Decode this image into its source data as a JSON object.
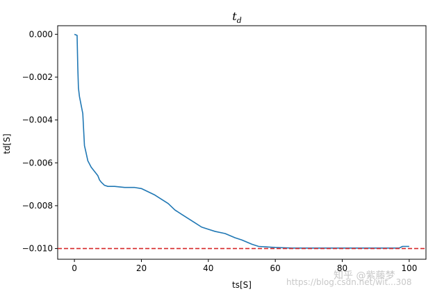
{
  "chart_data": {
    "type": "line",
    "title": "t",
    "title_subscript": "d",
    "xlabel": "ts[S]",
    "ylabel": "td[S]",
    "xlim": [
      -5,
      105
    ],
    "ylim": [
      -0.0105,
      0.0004
    ],
    "xticks": [
      0,
      20,
      40,
      60,
      80,
      100
    ],
    "yticks": [
      0.0,
      -0.002,
      -0.004,
      -0.006,
      -0.008,
      -0.01
    ],
    "ytick_labels": [
      "0.000",
      "−0.002",
      "−0.004",
      "−0.006",
      "−0.008",
      "−0.010"
    ],
    "grid": false,
    "series": [
      {
        "color": "#1f77b4",
        "x": [
          0,
          0.8,
          1.0,
          1.2,
          1.5,
          2.0,
          2.5,
          3.0,
          3.3,
          4.0,
          5.0,
          6.0,
          7.0,
          7.5,
          8.0,
          9.0,
          10.0,
          12.0,
          15.0,
          18.0,
          20.0,
          22.0,
          24.0,
          26.0,
          28.0,
          30.0,
          32.0,
          34.0,
          36.0,
          38.0,
          40.0,
          42.0,
          45.0,
          48.0,
          50.0,
          53.0,
          55.0,
          60.0,
          65.0,
          70.0,
          80.0,
          90.0,
          97.0,
          98.0,
          100.0
        ],
        "y": [
          0.0,
          -5e-05,
          -0.0015,
          -0.0025,
          -0.0029,
          -0.0033,
          -0.0037,
          -0.0052,
          -0.0054,
          -0.0059,
          -0.0062,
          -0.0064,
          -0.0066,
          -0.0068,
          -0.0069,
          -0.00705,
          -0.0071,
          -0.0071,
          -0.00715,
          -0.00715,
          -0.0072,
          -0.00735,
          -0.0075,
          -0.0077,
          -0.0079,
          -0.0082,
          -0.0084,
          -0.0086,
          -0.0088,
          -0.009,
          -0.0091,
          -0.0092,
          -0.0093,
          -0.0095,
          -0.0096,
          -0.0098,
          -0.0099,
          -0.00995,
          -0.00998,
          -0.00998,
          -0.00998,
          -0.00998,
          -0.00998,
          -0.0099,
          -0.0099
        ]
      }
    ],
    "reference_line": {
      "y": -0.01,
      "color": "#d62728",
      "style": "dashed"
    }
  },
  "watermark": {
    "line1": "知乎 @紫藤梦",
    "line2": "https://blog.csdn.net/wit...308"
  }
}
